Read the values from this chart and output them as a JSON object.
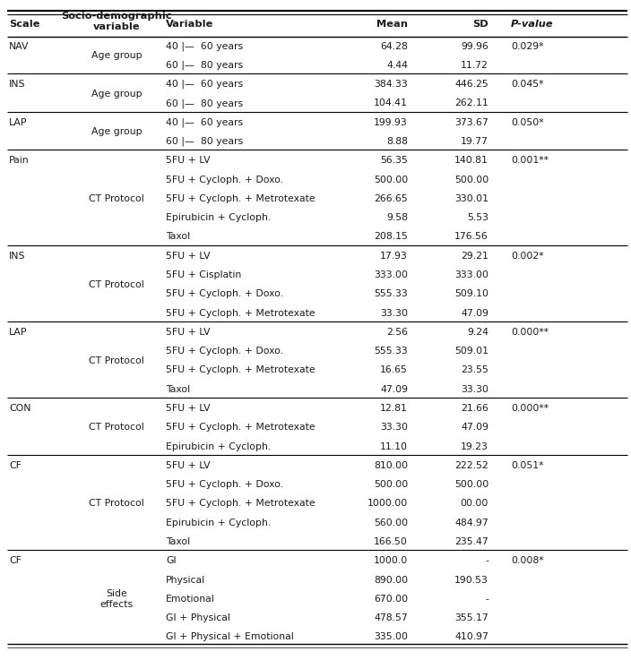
{
  "columns": [
    "Scale",
    "Socio-demographic\nvariable",
    "Variable",
    "Mean",
    "SD",
    "P-value"
  ],
  "rows": [
    {
      "scale": "NAV",
      "socio": "Age group",
      "variable": "40 |—  60 years",
      "mean": "64.28",
      "sd": "99.96",
      "pvalue": "0.029*",
      "section_start": true
    },
    {
      "scale": "",
      "socio": "",
      "variable": "60 |—  80 years",
      "mean": "4.44",
      "sd": "11.72",
      "pvalue": "",
      "section_start": false
    },
    {
      "scale": "INS",
      "socio": "Age group",
      "variable": "40 |—  60 years",
      "mean": "384.33",
      "sd": "446.25",
      "pvalue": "0.045*",
      "section_start": true
    },
    {
      "scale": "",
      "socio": "",
      "variable": "60 |—  80 years",
      "mean": "104.41",
      "sd": "262.11",
      "pvalue": "",
      "section_start": false
    },
    {
      "scale": "LAP",
      "socio": "Age group",
      "variable": "40 |—  60 years",
      "mean": "199.93",
      "sd": "373.67",
      "pvalue": "0.050*",
      "section_start": true
    },
    {
      "scale": "",
      "socio": "",
      "variable": "60 |—  80 years",
      "mean": "8.88",
      "sd": "19.77",
      "pvalue": "",
      "section_start": false
    },
    {
      "scale": "Pain",
      "socio": "CT Protocol",
      "variable": "5FU + LV",
      "mean": "56.35",
      "sd": "140.81",
      "pvalue": "0.001**",
      "section_start": true
    },
    {
      "scale": "",
      "socio": "",
      "variable": "5FU + Cycloph. + Doxo.",
      "mean": "500.00",
      "sd": "500.00",
      "pvalue": "",
      "section_start": false
    },
    {
      "scale": "",
      "socio": "",
      "variable": "5FU + Cycloph. + Metrotexate",
      "mean": "266.65",
      "sd": "330.01",
      "pvalue": "",
      "section_start": false
    },
    {
      "scale": "",
      "socio": "",
      "variable": "Epirubicin + Cycloph.",
      "mean": "9.58",
      "sd": "5.53",
      "pvalue": "",
      "section_start": false
    },
    {
      "scale": "",
      "socio": "",
      "variable": "Taxol",
      "mean": "208.15",
      "sd": "176.56",
      "pvalue": "",
      "section_start": false
    },
    {
      "scale": "INS",
      "socio": "CT Protocol",
      "variable": "5FU + LV",
      "mean": "17.93",
      "sd": "29.21",
      "pvalue": "0.002*",
      "section_start": true
    },
    {
      "scale": "",
      "socio": "",
      "variable": "5FU + Cisplatin",
      "mean": "333.00",
      "sd": "333.00",
      "pvalue": "",
      "section_start": false
    },
    {
      "scale": "",
      "socio": "",
      "variable": "5FU + Cycloph. + Doxo.",
      "mean": "555.33",
      "sd": "509.10",
      "pvalue": "",
      "section_start": false
    },
    {
      "scale": "",
      "socio": "",
      "variable": "5FU + Cycloph. + Metrotexate",
      "mean": "33.30",
      "sd": "47.09",
      "pvalue": "",
      "section_start": false
    },
    {
      "scale": "LAP",
      "socio": "CT Protocol",
      "variable": "5FU + LV",
      "mean": "2.56",
      "sd": "9.24",
      "pvalue": "0.000**",
      "section_start": true
    },
    {
      "scale": "",
      "socio": "",
      "variable": "5FU + Cycloph. + Doxo.",
      "mean": "555.33",
      "sd": "509.01",
      "pvalue": "",
      "section_start": false
    },
    {
      "scale": "",
      "socio": "",
      "variable": "5FU + Cycloph. + Metrotexate",
      "mean": "16.65",
      "sd": "23.55",
      "pvalue": "",
      "section_start": false
    },
    {
      "scale": "",
      "socio": "",
      "variable": "Taxol",
      "mean": "47.09",
      "sd": "33.30",
      "pvalue": "",
      "section_start": false
    },
    {
      "scale": "CON",
      "socio": "CT Protocol",
      "variable": "5FU + LV",
      "mean": "12.81",
      "sd": "21.66",
      "pvalue": "0.000**",
      "section_start": true
    },
    {
      "scale": "",
      "socio": "",
      "variable": "5FU + Cycloph. + Metrotexate",
      "mean": "33.30",
      "sd": "47.09",
      "pvalue": "",
      "section_start": false
    },
    {
      "scale": "",
      "socio": "",
      "variable": "Epirubicin + Cycloph.",
      "mean": "11.10",
      "sd": "19.23",
      "pvalue": "",
      "section_start": false
    },
    {
      "scale": "CF",
      "socio": "CT Protocol",
      "variable": "5FU + LV",
      "mean": "810.00",
      "sd": "222.52",
      "pvalue": "0.051*",
      "section_start": true
    },
    {
      "scale": "",
      "socio": "",
      "variable": "5FU + Cycloph. + Doxo.",
      "mean": "500.00",
      "sd": "500.00",
      "pvalue": "",
      "section_start": false
    },
    {
      "scale": "",
      "socio": "",
      "variable": "5FU + Cycloph. + Metrotexate",
      "mean": "1000.00",
      "sd": "00.00",
      "pvalue": "",
      "section_start": false
    },
    {
      "scale": "",
      "socio": "",
      "variable": "Epirubicin + Cycloph.",
      "mean": "560.00",
      "sd": "484.97",
      "pvalue": "",
      "section_start": false
    },
    {
      "scale": "",
      "socio": "",
      "variable": "Taxol",
      "mean": "166.50",
      "sd": "235.47",
      "pvalue": "",
      "section_start": false
    },
    {
      "scale": "CF",
      "socio": "Side\neffects",
      "variable": "GI",
      "mean": "1000.0",
      "sd": "-",
      "pvalue": "0.008*",
      "section_start": true
    },
    {
      "scale": "",
      "socio": "",
      "variable": "Physical",
      "mean": "890.00",
      "sd": "190.53",
      "pvalue": "",
      "section_start": false
    },
    {
      "scale": "",
      "socio": "",
      "variable": "Emotional",
      "mean": "670.00",
      "sd": "-",
      "pvalue": "",
      "section_start": false
    },
    {
      "scale": "",
      "socio": "",
      "variable": "GI + Physical",
      "mean": "478.57",
      "sd": "355.17",
      "pvalue": "",
      "section_start": false
    },
    {
      "scale": "",
      "socio": "",
      "variable": "GI + Physical + Emotional",
      "mean": "335.00",
      "sd": "410.97",
      "pvalue": "",
      "section_start": false
    }
  ],
  "bg_color": "#ffffff",
  "text_color": "#1a1a1a",
  "font_size": 7.8,
  "header_font_size": 8.2
}
